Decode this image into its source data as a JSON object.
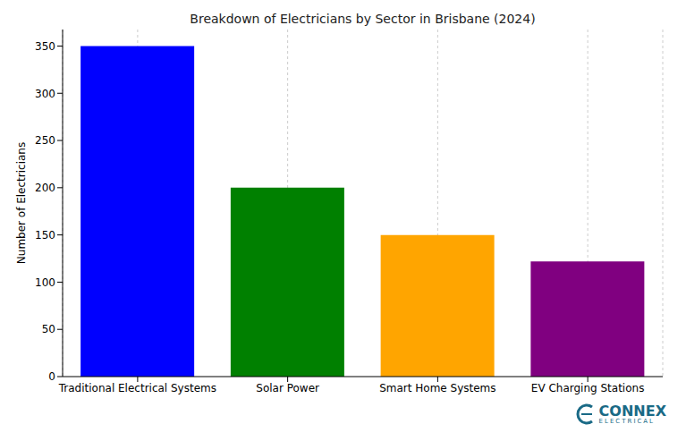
{
  "chart_data": {
    "type": "bar",
    "title": "Breakdown of Electricians by Sector in Brisbane (2024)",
    "y_label": "Number of Electricians",
    "categories": [
      "Traditional Electrical Systems",
      "Solar Power",
      "Smart Home Systems",
      "EV Charging Stations"
    ],
    "values": [
      350,
      200,
      150,
      122
    ],
    "colors": [
      "#0000ff",
      "#008000",
      "#ffa500",
      "#800080"
    ],
    "ylim": [
      0,
      367.5
    ],
    "yticks": [
      0,
      50,
      100,
      150,
      200,
      250,
      300,
      350
    ],
    "grid": true,
    "annotations": [
      "CONNEX",
      "ELECTRICAL"
    ]
  }
}
